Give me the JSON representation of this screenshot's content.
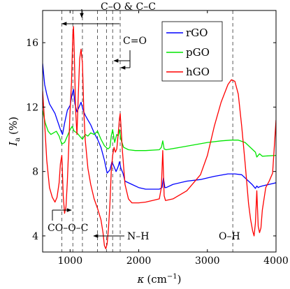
{
  "chart_data": {
    "type": "line",
    "xlabel_symbol": "κ",
    "xlabel_unit": "(cm",
    "xlabel_exp": "−1",
    "xlabel_close": ")",
    "ylabel_symbol": "I",
    "ylabel_sub": "a",
    "ylabel_unit": "(%)",
    "xlim": [
      600,
      4000
    ],
    "ylim": [
      3,
      18
    ],
    "xticks": [
      1000,
      2000,
      3000,
      4000
    ],
    "yticks": [
      4,
      8,
      12,
      16
    ],
    "legend_position": "top-right",
    "series": [
      {
        "name": "rGO",
        "color": "#0000ff",
        "x": [
          600,
          630,
          660,
          700,
          740,
          780,
          820,
          860,
          890,
          920,
          960,
          1000,
          1030,
          1050,
          1070,
          1100,
          1130,
          1160,
          1190,
          1220,
          1260,
          1300,
          1350,
          1400,
          1450,
          1500,
          1540,
          1580,
          1610,
          1640,
          1670,
          1700,
          1720,
          1740,
          1770,
          1800,
          1900,
          2000,
          2100,
          2200,
          2300,
          2340,
          2360,
          2380,
          2400,
          2500,
          2700,
          2900,
          3100,
          3300,
          3400,
          3500,
          3600,
          3650,
          3700,
          3720,
          3740,
          3760,
          3800,
          3900,
          4000
        ],
        "y": [
          14.7,
          13.4,
          12.8,
          12.2,
          11.9,
          11.6,
          11.1,
          10.6,
          10.3,
          11.0,
          11.8,
          12.1,
          12.8,
          13.1,
          12.2,
          11.7,
          12.0,
          12.3,
          11.8,
          11.5,
          11.2,
          10.9,
          10.4,
          10.0,
          9.5,
          8.7,
          7.9,
          8.1,
          8.6,
          8.3,
          8.0,
          8.3,
          8.6,
          8.2,
          7.9,
          7.4,
          7.2,
          7.0,
          6.9,
          6.9,
          6.9,
          7.0,
          7.6,
          7.0,
          7.0,
          7.2,
          7.4,
          7.5,
          7.7,
          7.85,
          7.85,
          7.8,
          7.4,
          7.2,
          6.95,
          7.1,
          7.0,
          7.05,
          7.1,
          7.2,
          7.3
        ]
      },
      {
        "name": "pGO",
        "color": "#00e600",
        "x": [
          600,
          640,
          680,
          720,
          760,
          800,
          840,
          880,
          920,
          960,
          1000,
          1030,
          1060,
          1100,
          1140,
          1180,
          1220,
          1260,
          1300,
          1350,
          1400,
          1450,
          1500,
          1550,
          1580,
          1600,
          1620,
          1650,
          1680,
          1700,
          1720,
          1740,
          1780,
          1850,
          1950,
          2100,
          2300,
          2330,
          2350,
          2370,
          2400,
          2600,
          2800,
          3000,
          3200,
          3350,
          3450,
          3550,
          3650,
          3700,
          3720,
          3760,
          3800,
          4000
        ],
        "y": [
          11.8,
          11.0,
          10.5,
          10.3,
          10.4,
          10.5,
          10.2,
          9.7,
          9.8,
          10.2,
          10.6,
          10.8,
          10.5,
          10.4,
          10.2,
          10.0,
          10.3,
          10.2,
          10.4,
          10.3,
          10.5,
          10.0,
          9.6,
          9.4,
          9.5,
          10.2,
          10.6,
          9.8,
          10.3,
          10.2,
          10.6,
          10.0,
          9.5,
          9.35,
          9.3,
          9.3,
          9.35,
          9.5,
          9.9,
          9.4,
          9.35,
          9.5,
          9.65,
          9.8,
          9.9,
          9.95,
          9.95,
          9.8,
          9.4,
          9.2,
          8.9,
          9.1,
          8.95,
          9.0
        ]
      },
      {
        "name": "hGO",
        "color": "#ff0000",
        "x": [
          600,
          630,
          660,
          700,
          740,
          780,
          810,
          840,
          860,
          880,
          900,
          920,
          940,
          960,
          980,
          1000,
          1020,
          1040,
          1050,
          1060,
          1080,
          1100,
          1120,
          1140,
          1160,
          1180,
          1200,
          1220,
          1260,
          1300,
          1350,
          1400,
          1450,
          1480,
          1500,
          1520,
          1540,
          1560,
          1580,
          1600,
          1620,
          1640,
          1660,
          1680,
          1700,
          1720,
          1730,
          1740,
          1760,
          1780,
          1800,
          1850,
          1900,
          2000,
          2100,
          2200,
          2300,
          2330,
          2350,
          2370,
          2390,
          2500,
          2700,
          2900,
          3000,
          3100,
          3200,
          3300,
          3350,
          3400,
          3450,
          3500,
          3550,
          3600,
          3630,
          3660,
          3680,
          3700,
          3720,
          3740,
          3760,
          3780,
          3800,
          3850,
          3900,
          3950,
          4000
        ],
        "y": [
          13.0,
          11.0,
          8.7,
          7.0,
          6.4,
          6.1,
          6.4,
          7.3,
          8.5,
          9.0,
          6.5,
          5.4,
          5.8,
          7.4,
          9.5,
          11.8,
          13.5,
          16.5,
          17.0,
          15.5,
          11.8,
          10.3,
          12.8,
          15.0,
          15.6,
          14.7,
          11.8,
          10.0,
          8.2,
          7.2,
          6.3,
          5.7,
          5.0,
          4.2,
          3.4,
          3.2,
          3.5,
          4.5,
          6.0,
          8.0,
          9.0,
          9.5,
          9.2,
          9.4,
          10.3,
          11.3,
          11.6,
          10.9,
          9.4,
          8.3,
          7.2,
          6.3,
          6.05,
          6.05,
          6.1,
          6.2,
          6.3,
          7.0,
          9.3,
          6.5,
          6.2,
          6.3,
          6.8,
          7.8,
          9.0,
          10.8,
          12.3,
          13.4,
          13.7,
          13.6,
          12.8,
          10.8,
          8.5,
          6.0,
          5.0,
          4.3,
          4.0,
          4.8,
          6.8,
          4.6,
          4.2,
          4.5,
          5.6,
          7.0,
          7.4,
          7.9,
          11.2
        ]
      }
    ],
    "vlines": [
      880,
      1040,
      1180,
      1400,
      1530,
      1620,
      1730,
      3370
    ],
    "annotations": {
      "co_and_cc": "C–O & C–C",
      "c_double_o": "C=O",
      "co_o_c": "CO–O–C",
      "n_h": "N–H",
      "o_h": "O–H"
    }
  }
}
